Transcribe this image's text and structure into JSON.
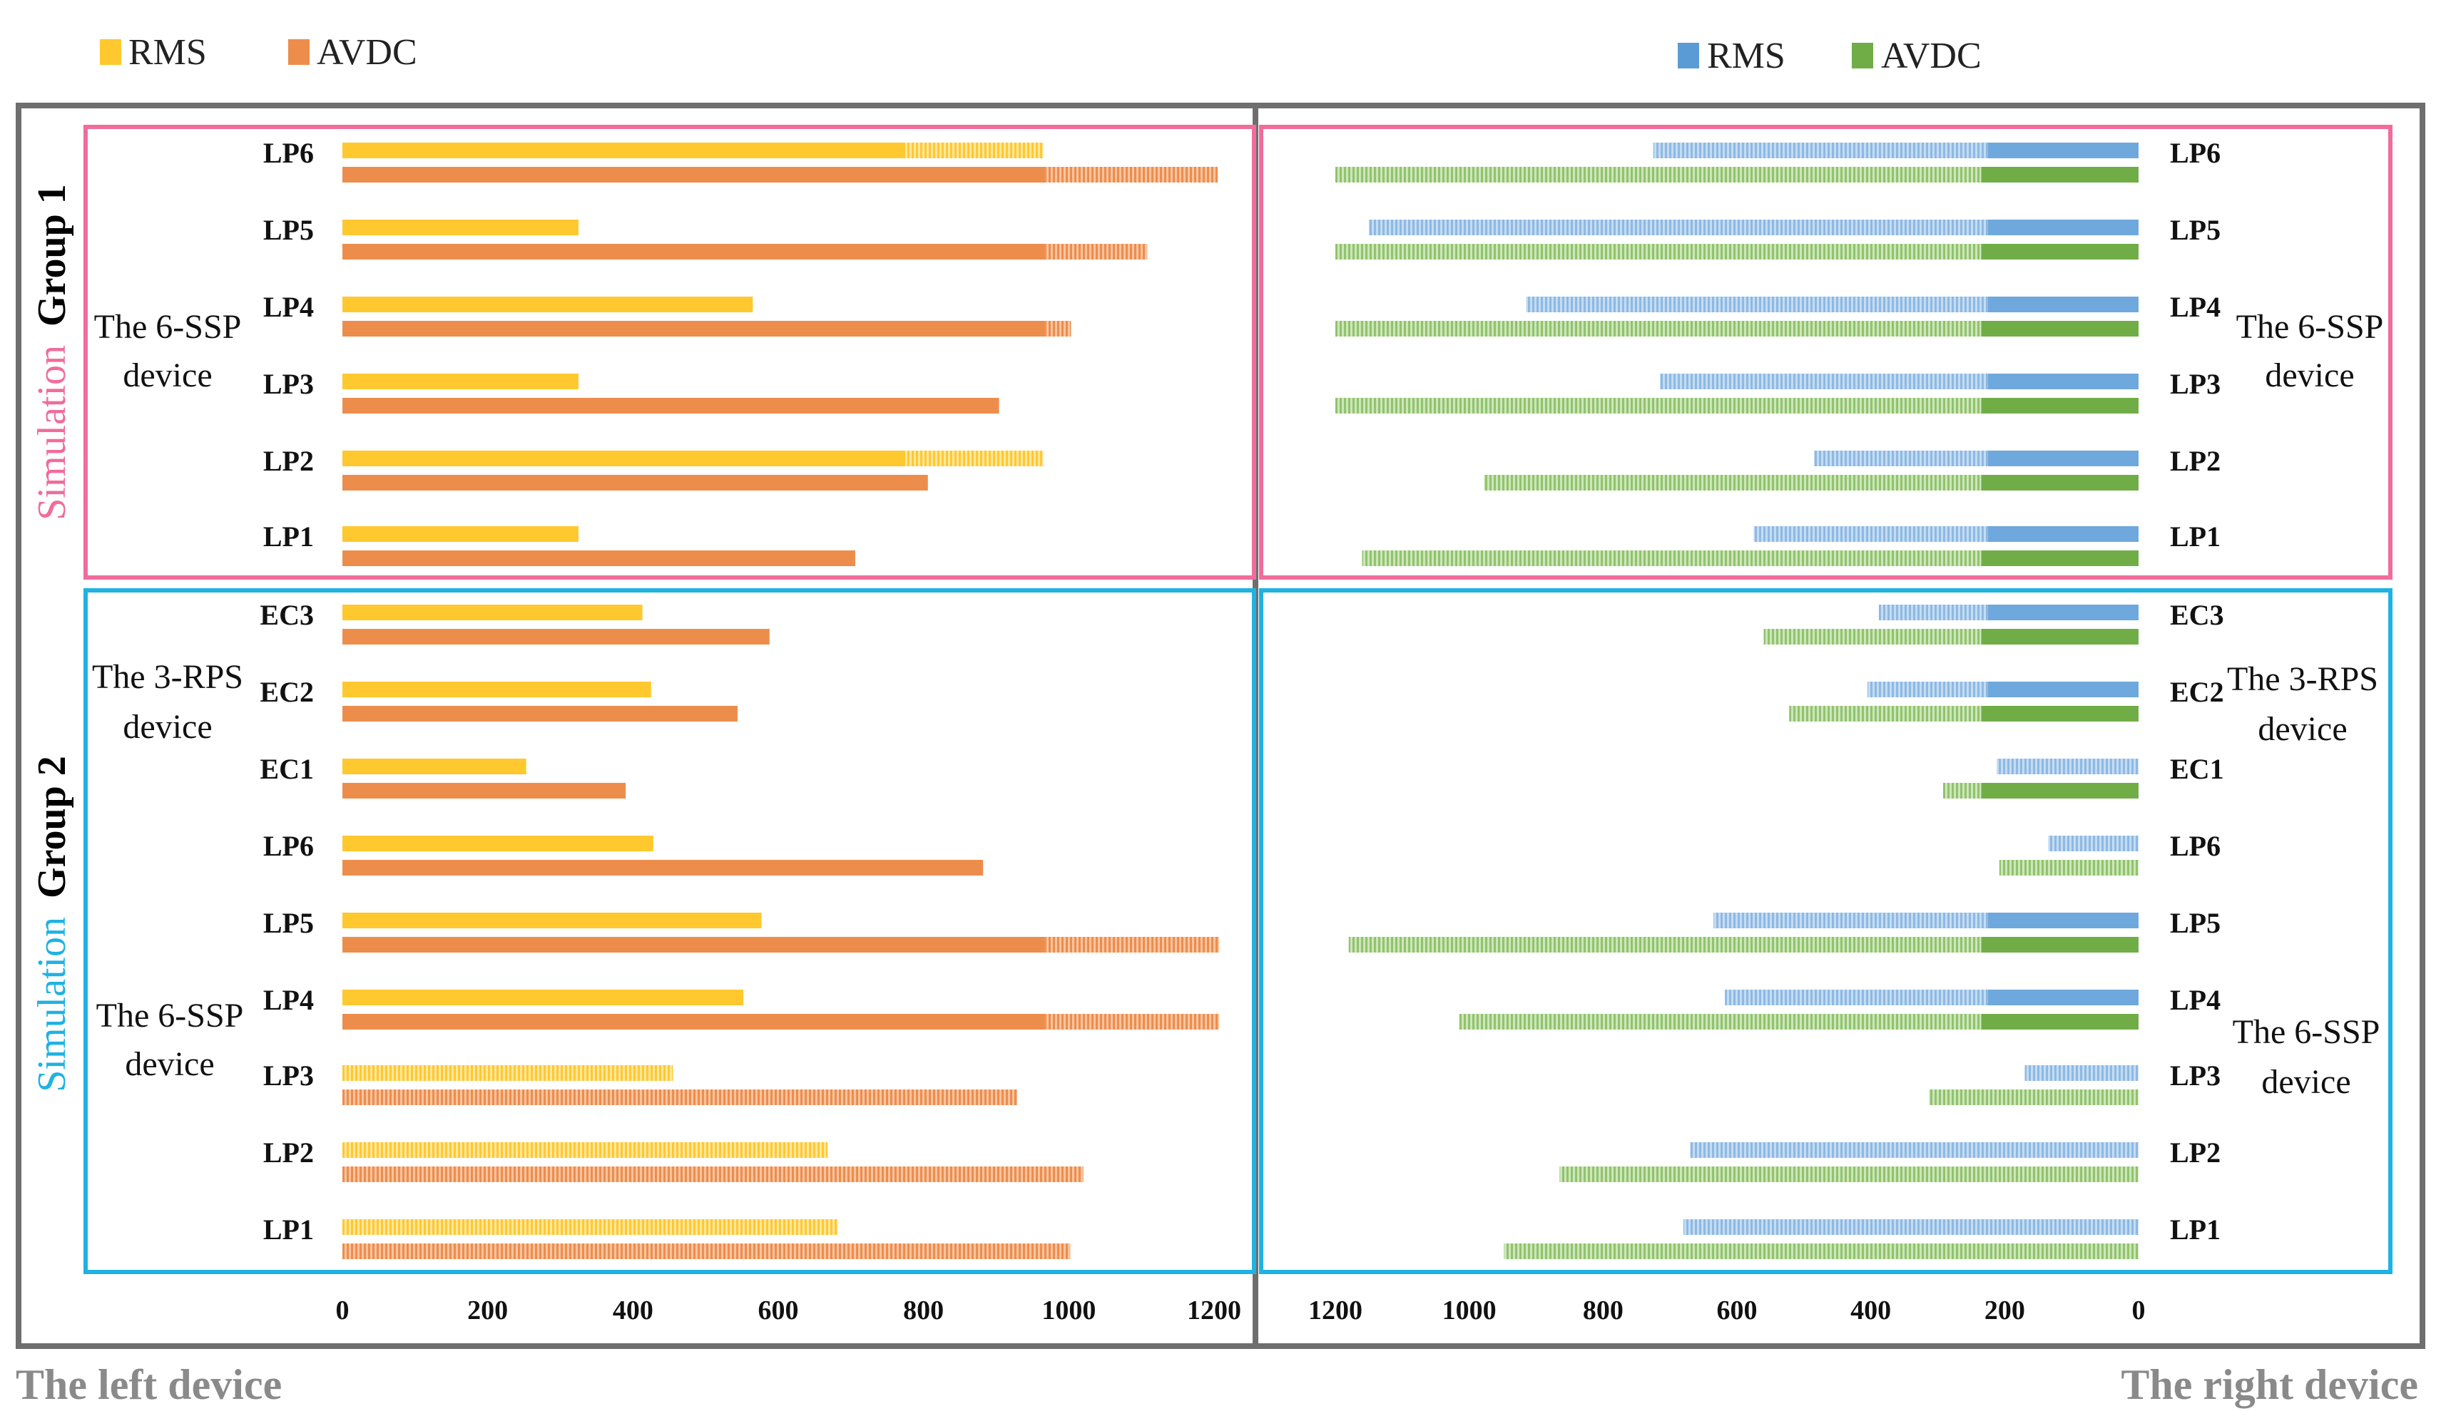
{
  "left_legend": [
    {
      "label": "RMS",
      "color": "#FFC82E"
    },
    {
      "label": "AVDC",
      "color": "#ED8D4C"
    }
  ],
  "right_legend": [
    {
      "label": "RMS",
      "color": "#5B9BD5"
    },
    {
      "label": "AVDC",
      "color": "#70AD47"
    }
  ],
  "group1": {
    "title_colored": "Simulation",
    "title_bold": "Group 1",
    "left_device_label": [
      "The 6-SSP",
      "device"
    ],
    "right_device_label": [
      "The 6-SSP",
      "device"
    ]
  },
  "group2": {
    "title_colored": "Simulation",
    "title_bold": "Group 2",
    "left_device_labels": [
      [
        "The 3-RPS",
        "device"
      ],
      [
        "The 6-SSP",
        "device"
      ]
    ],
    "right_device_labels": [
      [
        "The 3-RPS",
        "device"
      ],
      [
        "The 6-SSP",
        "device"
      ]
    ]
  },
  "footer": {
    "left": "The left device",
    "right": "The right device"
  },
  "chart_data": {
    "type": "bar",
    "orientation": "horizontal",
    "note": "Faded/hatched bar segments mark the portion shared between the left and right device charts.",
    "panels": [
      {
        "name": "The left device",
        "xlim": [
          0,
          1200
        ],
        "xticks": [
          "0",
          "200",
          "400",
          "600",
          "800",
          "1000",
          "1200"
        ],
        "categories": [
          "LP6",
          "LP5",
          "LP4",
          "LP3",
          "LP2",
          "LP1",
          "EC3",
          "EC2",
          "EC1",
          "LP6",
          "LP5",
          "LP4",
          "LP3",
          "LP2",
          "LP1"
        ],
        "groups": [
          "Simulation Group 1",
          "Simulation Group 1",
          "Simulation Group 1",
          "Simulation Group 1",
          "Simulation Group 1",
          "Simulation Group 1",
          "Simulation Group 2",
          "Simulation Group 2",
          "Simulation Group 2",
          "Simulation Group 2",
          "Simulation Group 2",
          "Simulation Group 2",
          "Simulation Group 2",
          "Simulation Group 2",
          "Simulation Group 2"
        ],
        "series": [
          {
            "name": "RMS",
            "values": [
              965,
              325,
              565,
              325,
              965,
              325,
              413,
              425,
              253,
              428,
              577,
              552,
              455,
              668,
              682
            ],
            "shared_from": [
              775,
              null,
              null,
              null,
              775,
              null,
              null,
              null,
              null,
              null,
              null,
              null,
              0,
              0,
              0
            ]
          },
          {
            "name": "AVDC",
            "values": [
              1205,
              1108,
              1003,
              904,
              806,
              706,
              588,
              544,
              390,
              882,
              1207,
              1207,
              929,
              1020,
              1002
            ],
            "shared_from": [
              968,
              968,
              968,
              null,
              null,
              null,
              null,
              null,
              null,
              null,
              968,
              968,
              0,
              0,
              0
            ]
          }
        ]
      },
      {
        "name": "The right device",
        "xlim": [
          1200,
          0
        ],
        "xticks": [
          "1200",
          "1000",
          "800",
          "600",
          "400",
          "200",
          "0"
        ],
        "categories": [
          "LP6",
          "LP5",
          "LP4",
          "LP3",
          "LP2",
          "LP1",
          "EC3",
          "EC2",
          "EC1",
          "LP6",
          "LP5",
          "LP4",
          "LP3",
          "LP2",
          "LP1"
        ],
        "groups": [
          "Simulation Group 1",
          "Simulation Group 1",
          "Simulation Group 1",
          "Simulation Group 1",
          "Simulation Group 1",
          "Simulation Group 1",
          "Simulation Group 2",
          "Simulation Group 2",
          "Simulation Group 2",
          "Simulation Group 2",
          "Simulation Group 2",
          "Simulation Group 2",
          "Simulation Group 2",
          "Simulation Group 2",
          "Simulation Group 2"
        ],
        "series": [
          {
            "name": "RMS",
            "values": [
              725,
              1150,
              915,
              715,
              485,
              575,
              388,
              405,
              212,
              135,
              635,
              618,
              170,
              670,
              680
            ],
            "shared_from": [
              225,
              225,
              225,
              225,
              225,
              225,
              225,
              225,
              0,
              0,
              225,
              225,
              0,
              0,
              0
            ]
          },
          {
            "name": "AVDC",
            "values": [
              1200,
              1200,
              1200,
              1200,
              978,
              1160,
              560,
              522,
              292,
              208,
              1180,
              1015,
              313,
              865,
              948
            ],
            "shared_from": [
              235,
              235,
              235,
              235,
              235,
              235,
              235,
              235,
              235,
              0,
              235,
              235,
              0,
              0,
              0
            ]
          }
        ]
      }
    ]
  }
}
